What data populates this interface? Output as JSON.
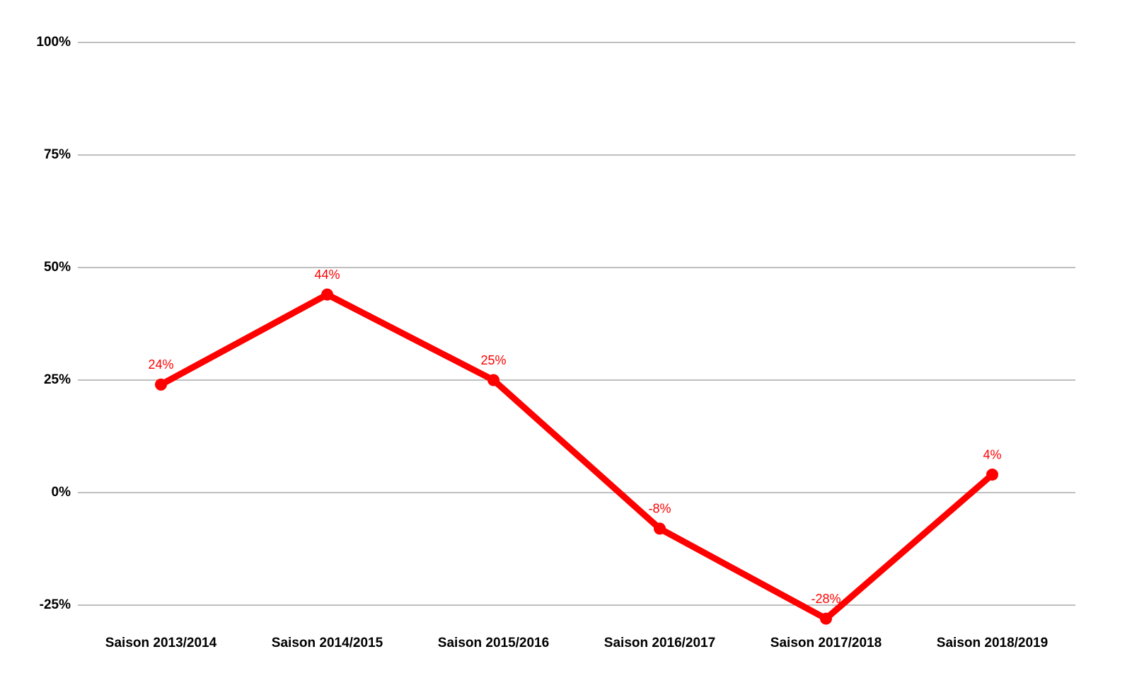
{
  "chart_data": {
    "type": "line",
    "categories": [
      "Saison 2013/2014",
      "Saison 2014/2015",
      "Saison 2015/2016",
      "Saison 2016/2017",
      "Saison 2017/2018",
      "Saison 2018/2019"
    ],
    "values": [
      24,
      44,
      25,
      -8,
      -28,
      4
    ],
    "value_labels": [
      "24%",
      "44%",
      "25%",
      "-8%",
      "-28%",
      "4%"
    ],
    "color": "#ff0000",
    "ylim": [
      -25,
      100
    ],
    "yticks": [
      {
        "value": -25,
        "label": "-25%"
      },
      {
        "value": 0,
        "label": "0%"
      },
      {
        "value": 25,
        "label": "25%"
      },
      {
        "value": 50,
        "label": "50%"
      },
      {
        "value": 75,
        "label": "75%"
      },
      {
        "value": 100,
        "label": "100%"
      }
    ],
    "grid": true
  }
}
